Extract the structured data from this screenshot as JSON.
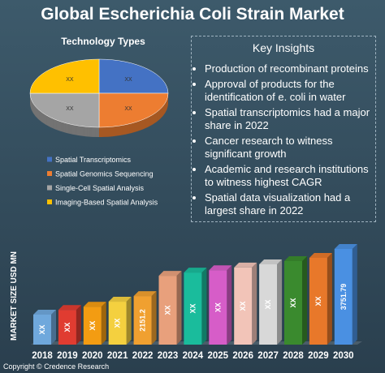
{
  "title": "Global Escherichia Coli Strain Market",
  "chart_data": [
    {
      "type": "pie",
      "title": "Technology Types",
      "categories": [
        "Spatial Transcriptomics",
        "Spatial Genomics Sequencing",
        "Single-Cell Spatial Analysis",
        "Imaging-Based Spatial Analysis"
      ],
      "values": [
        25,
        25,
        25,
        25
      ],
      "value_labels": [
        "XX",
        "XX",
        "XX",
        "XX"
      ],
      "colors": [
        "#4472c4",
        "#ed7d31",
        "#a5a5a5",
        "#ffc000"
      ]
    },
    {
      "type": "bar",
      "y_label": "MARKET SIZE USD MN",
      "categories": [
        "2018",
        "2019",
        "2020",
        "2021",
        "2022",
        "2023",
        "2024",
        "2025",
        "2026",
        "2027",
        "2028",
        "2029",
        "2030"
      ],
      "values": [
        1520,
        1680,
        1790,
        1960,
        2151.2,
        2840,
        2950,
        3030,
        3120,
        3230,
        3340,
        3450,
        3751.79
      ],
      "value_labels": [
        "XX",
        "XX",
        "XX",
        "XX",
        "2151.2",
        "XX",
        "XX",
        "XX",
        "XX",
        "XX",
        "XX",
        "XX",
        "3751.79"
      ],
      "colors": [
        "#6fa8dc",
        "#e03c31",
        "#f39c12",
        "#f4d03f",
        "#f0a030",
        "#e8a07c",
        "#1abc9c",
        "#d65dc8",
        "#f2c4b8",
        "#d8d8d8",
        "#3a8a2e",
        "#e8782a",
        "#4a90e2"
      ]
    }
  ],
  "insights": {
    "title": "Key Insights",
    "items": [
      "Production of recombinant proteins",
      "Approval of products for the identification of e. coli in water",
      "Spatial transcriptomics had a major share in 2022",
      "Cancer research to witness significant growth",
      "Academic and research institutions to witness highest CAGR",
      "Spatial data visualization had a largest share in 2022"
    ]
  },
  "footer": "Copyright © Credence Research"
}
